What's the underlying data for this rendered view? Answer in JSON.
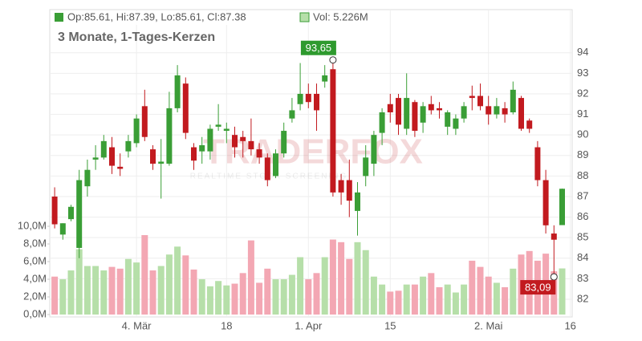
{
  "chart_data": {
    "type": "candlestick",
    "title": "3 Monate, 1-Tages-Kerzen",
    "header": {
      "ohlc": "Op:85.61, Hi:87.39, Lo:85.61, Cl:87.38",
      "volume": "Vol: 5.226M"
    },
    "watermark": {
      "brand": "TRADERFOX",
      "tagline": "REALTIME STOCK SCREENING"
    },
    "categories": [
      null,
      null,
      null,
      null,
      null,
      null,
      null,
      null,
      null,
      null,
      "4. Mär",
      null,
      null,
      null,
      null,
      null,
      null,
      null,
      null,
      null,
      null,
      "18",
      null,
      null,
      null,
      null,
      null,
      null,
      null,
      null,
      null,
      "1. Apr",
      null,
      null,
      null,
      null,
      null,
      null,
      null,
      null,
      null,
      "15",
      null,
      null,
      null,
      null,
      null,
      null,
      null,
      null,
      null,
      null,
      null,
      "2. Mai",
      null,
      null,
      null,
      null,
      null,
      null,
      null,
      null,
      null,
      "16"
    ],
    "open": [
      87.0,
      85.15,
      85.9,
      84.5,
      87.5,
      88.8,
      88.9,
      89.4,
      88.45,
      89.2,
      89.6,
      91.4,
      89.3,
      88.6,
      88.6,
      91.3,
      92.5,
      89.4,
      89.2,
      89.2,
      90.4,
      90.2,
      90.0,
      89.9,
      89.7,
      89.3,
      88.9,
      88.0,
      89.1,
      90.8,
      91.5,
      92.0,
      92.0,
      92.6,
      93.2,
      87.8,
      87.8,
      86.3,
      88.0,
      88.6,
      90.1,
      91.5,
      91.8,
      90.3,
      91.6,
      90.6,
      91.5,
      91.3,
      90.4,
      90.3,
      90.8,
      91.9,
      91.9,
      91.4,
      91.0,
      91.3,
      91.1,
      91.8,
      90.7,
      89.4,
      87.8,
      85.2,
      85.61,
      null
    ],
    "high": [
      87.45,
      85.7,
      86.6,
      88.3,
      88.8,
      89.5,
      90.0,
      89.9,
      89.1,
      90.0,
      91.0,
      92.2,
      89.5,
      89.8,
      92.1,
      93.4,
      92.8,
      89.6,
      89.9,
      90.5,
      91.5,
      90.6,
      90.4,
      90.2,
      90.8,
      89.6,
      89.1,
      89.3,
      90.6,
      91.8,
      93.5,
      92.5,
      92.5,
      93.4,
      93.65,
      88.1,
      88.8,
      87.7,
      89.5,
      90.2,
      91.3,
      92.0,
      92.0,
      93.0,
      91.7,
      91.6,
      91.9,
      91.6,
      91.2,
      91.0,
      91.6,
      92.4,
      92.5,
      91.9,
      91.8,
      91.6,
      92.6,
      91.9,
      90.8,
      89.7,
      88.3,
      85.6,
      87.39,
      null
    ],
    "low": [
      85.45,
      84.9,
      85.8,
      84.0,
      87.0,
      88.3,
      88.8,
      88.1,
      88.0,
      88.9,
      89.4,
      89.7,
      88.3,
      86.9,
      88.5,
      91.1,
      89.8,
      88.3,
      88.6,
      88.8,
      90.2,
      89.6,
      88.9,
      88.9,
      89.0,
      88.6,
      87.5,
      87.9,
      88.9,
      90.6,
      91.2,
      91.3,
      90.2,
      92.3,
      87.0,
      86.6,
      86.0,
      85.1,
      87.5,
      88.0,
      89.5,
      90.6,
      90.0,
      90.0,
      89.9,
      90.1,
      91.0,
      90.8,
      90.0,
      90.0,
      90.6,
      91.2,
      91.2,
      90.5,
      90.8,
      90.6,
      91.0,
      90.2,
      90.1,
      87.5,
      85.2,
      83.09,
      85.61,
      null
    ],
    "close": [
      85.65,
      85.7,
      86.5,
      87.8,
      88.3,
      88.9,
      89.7,
      88.5,
      88.35,
      89.7,
      90.8,
      89.9,
      88.6,
      88.7,
      91.3,
      92.9,
      90.1,
      88.75,
      89.5,
      90.3,
      90.5,
      90.3,
      89.4,
      89.7,
      89.3,
      88.9,
      87.8,
      89.1,
      90.2,
      91.2,
      92.0,
      91.6,
      91.2,
      92.9,
      87.2,
      87.2,
      86.8,
      87.2,
      88.9,
      90.0,
      91.1,
      91.1,
      90.5,
      91.8,
      90.2,
      91.4,
      91.2,
      91.2,
      91.1,
      90.8,
      91.4,
      91.8,
      91.4,
      91.0,
      91.4,
      91.0,
      92.2,
      90.3,
      90.3,
      87.8,
      85.6,
      84.9,
      87.38,
      null
    ],
    "volume": [
      4.3,
      4.0,
      5.0,
      7.4,
      5.5,
      5.5,
      5.0,
      5.4,
      5.2,
      6.3,
      5.9,
      9.0,
      5.0,
      5.5,
      6.8,
      7.7,
      6.7,
      5.1,
      4.0,
      3.2,
      3.8,
      3.3,
      3.5,
      4.7,
      8.4,
      3.6,
      5.2,
      4.0,
      4.0,
      4.5,
      6.5,
      4.0,
      4.7,
      6.5,
      8.5,
      8.2,
      6.3,
      8.2,
      7.3,
      4.3,
      3.4,
      2.6,
      2.7,
      3.4,
      3.4,
      4.3,
      4.7,
      3.1,
      3.4,
      2.5,
      3.4,
      6.1,
      5.4,
      4.3,
      3.6,
      3.1,
      5.2,
      6.8,
      7.2,
      6.1,
      6.9,
      4.9,
      5.226,
      null
    ],
    "annotations": [
      {
        "index": 34,
        "value": 93.65,
        "label": "93,65"
      },
      {
        "index": 61,
        "value": 83.09,
        "label": "83,09"
      }
    ],
    "ylim": [
      81.14,
      96.1
    ],
    "yticks": [
      82,
      83,
      84,
      85,
      86,
      87,
      88,
      89,
      90,
      91,
      92,
      93,
      94
    ],
    "y2lim": [
      -0.27,
      34.55
    ],
    "y2ticks": [
      {
        "value": 0,
        "label": "0,0M"
      },
      {
        "value": 2,
        "label": "2,0M"
      },
      {
        "value": 4,
        "label": "4,0M"
      },
      {
        "value": 6,
        "label": "6,0M"
      },
      {
        "value": 8,
        "label": "8,0M"
      },
      {
        "value": 10,
        "label": "10,0M"
      }
    ],
    "colors": {
      "up": "#3a9e36",
      "down": "#c21a1f",
      "volume_up": "#b6dfa9",
      "volume_down": "#f3a7b3"
    },
    "grid": true
  }
}
